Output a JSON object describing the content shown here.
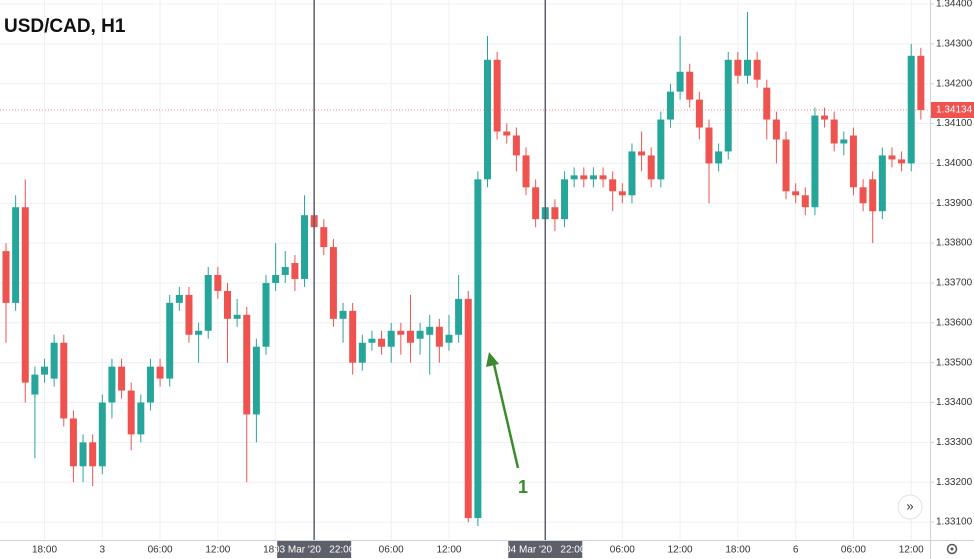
{
  "chart_data": {
    "type": "candlestick",
    "title": "USD/CAD, H1",
    "annotation": "1",
    "categories": [
      null,
      null,
      null,
      null,
      "18:00",
      null,
      null,
      null,
      null,
      null,
      "3",
      null,
      null,
      null,
      null,
      null,
      "06:00",
      null,
      null,
      null,
      null,
      null,
      "12:00",
      null,
      null,
      null,
      null,
      null,
      "18:00",
      null,
      null,
      null,
      "03 Mar '20   22:00",
      null,
      null,
      null,
      null,
      null,
      null,
      null,
      "06:00",
      null,
      null,
      null,
      null,
      null,
      "12:00",
      null,
      null,
      null,
      null,
      null,
      null,
      null,
      null,
      null,
      "04 Mar '20   22:00",
      null,
      null,
      null,
      null,
      null,
      null,
      null,
      "06:00",
      null,
      null,
      null,
      null,
      null,
      "12:00",
      null,
      null,
      null,
      null,
      null,
      "18:00",
      null,
      null,
      null,
      null,
      null,
      "6",
      null,
      null,
      null,
      null,
      null,
      "06:00",
      null,
      null,
      null,
      null,
      null,
      "12:00",
      null
    ],
    "highlighted_categories": [
      "03 Mar '20   22:00",
      "04 Mar '20   22:00"
    ],
    "open": [
      1.3378,
      1.3365,
      1.3389,
      1.3342,
      1.3347,
      1.3346,
      1.3355,
      1.3336,
      1.3324,
      1.333,
      1.3324,
      1.334,
      1.3349,
      1.3343,
      1.3332,
      1.334,
      1.3349,
      1.3346,
      1.3365,
      1.3367,
      1.3357,
      1.3358,
      1.3372,
      1.3368,
      1.3361,
      1.3362,
      1.3337,
      1.3354,
      1.337,
      1.3372,
      1.3375,
      1.3371,
      1.3387,
      1.3384,
      1.3379,
      1.3361,
      1.3363,
      1.335,
      1.3355,
      1.3356,
      1.3354,
      1.3358,
      1.3358,
      1.3356,
      1.3357,
      1.3359,
      1.3355,
      1.3357,
      1.3366,
      1.3311,
      1.3396,
      1.3426,
      1.3408,
      1.3407,
      1.3402,
      1.3394,
      1.3386,
      1.3389,
      1.3386,
      1.3396,
      1.3397,
      1.3396,
      1.3397,
      1.3396,
      1.3393,
      1.3392,
      1.3403,
      1.3402,
      1.3396,
      1.3411,
      1.3418,
      1.3423,
      1.3416,
      1.3409,
      1.34,
      1.3403,
      1.3426,
      1.3422,
      1.3426,
      1.3419,
      1.3411,
      1.3406,
      1.3393,
      1.3392,
      1.3389,
      1.3412,
      1.3411,
      1.3405,
      1.3407,
      1.3394,
      1.3396,
      1.3388,
      1.3402,
      1.3401,
      1.34,
      1.3427
    ],
    "high": [
      1.338,
      1.3392,
      1.3396,
      1.3349,
      1.3351,
      1.3357,
      1.3357,
      1.3338,
      1.3332,
      1.3332,
      1.3342,
      1.3351,
      1.3351,
      1.3345,
      1.3342,
      1.3351,
      1.3351,
      1.3367,
      1.3369,
      1.3369,
      1.336,
      1.3374,
      1.3374,
      1.337,
      1.3366,
      1.3364,
      1.3356,
      1.3372,
      1.338,
      1.3378,
      1.3377,
      1.3392,
      1.3389,
      1.3386,
      1.3381,
      1.3365,
      1.3365,
      1.3357,
      1.3358,
      1.3358,
      1.336,
      1.336,
      1.3367,
      1.336,
      1.3362,
      1.3361,
      1.3362,
      1.3372,
      1.3368,
      1.3398,
      1.3432,
      1.3428,
      1.341,
      1.3409,
      1.3404,
      1.3396,
      1.3391,
      1.3391,
      1.3398,
      1.3399,
      1.3399,
      1.3399,
      1.3399,
      1.3398,
      1.3395,
      1.3405,
      1.3408,
      1.3404,
      1.3413,
      1.342,
      1.3432,
      1.3425,
      1.3418,
      1.3411,
      1.3405,
      1.3428,
      1.3428,
      1.3438,
      1.3428,
      1.3421,
      1.3413,
      1.3408,
      1.3395,
      1.3394,
      1.3414,
      1.3414,
      1.3413,
      1.3408,
      1.3409,
      1.3396,
      1.3398,
      1.3404,
      1.3404,
      1.3403,
      1.343,
      1.3429
    ],
    "low": [
      1.3355,
      1.3363,
      1.334,
      1.3326,
      1.3345,
      1.3344,
      1.3334,
      1.332,
      1.332,
      1.3319,
      1.3322,
      1.3336,
      1.3341,
      1.3328,
      1.333,
      1.3338,
      1.3344,
      1.3344,
      1.3363,
      1.3355,
      1.335,
      1.3356,
      1.3366,
      1.335,
      1.3359,
      1.332,
      1.333,
      1.3352,
      1.3368,
      1.337,
      1.3368,
      1.3369,
      1.3382,
      1.3377,
      1.3359,
      1.3355,
      1.3347,
      1.3348,
      1.3353,
      1.3352,
      1.335,
      1.3352,
      1.335,
      1.3352,
      1.3347,
      1.335,
      1.3353,
      1.3355,
      1.331,
      1.3309,
      1.3394,
      1.3406,
      1.3405,
      1.3398,
      1.3392,
      1.3384,
      1.3384,
      1.3383,
      1.3384,
      1.3394,
      1.3394,
      1.3394,
      1.3394,
      1.3388,
      1.339,
      1.339,
      1.3398,
      1.3394,
      1.3394,
      1.3409,
      1.3416,
      1.3414,
      1.3406,
      1.339,
      1.3398,
      1.3401,
      1.342,
      1.342,
      1.3419,
      1.3406,
      1.34,
      1.3391,
      1.339,
      1.3387,
      1.3387,
      1.3409,
      1.3403,
      1.3402,
      1.3392,
      1.3388,
      1.338,
      1.3386,
      1.3399,
      1.3398,
      1.3398,
      1.3411
    ],
    "close": [
      1.3365,
      1.3389,
      1.3345,
      1.3347,
      1.3349,
      1.3355,
      1.3336,
      1.3324,
      1.333,
      1.3324,
      1.334,
      1.3349,
      1.3343,
      1.3332,
      1.334,
      1.3349,
      1.3346,
      1.3365,
      1.3367,
      1.3357,
      1.3358,
      1.3372,
      1.3368,
      1.3361,
      1.3362,
      1.3337,
      1.3354,
      1.337,
      1.3372,
      1.3374,
      1.3371,
      1.3387,
      1.3384,
      1.3379,
      1.3361,
      1.3363,
      1.335,
      1.3355,
      1.3356,
      1.3354,
      1.3358,
      1.3357,
      1.3355,
      1.3358,
      1.3359,
      1.3354,
      1.3357,
      1.3366,
      1.3311,
      1.3396,
      1.3426,
      1.3408,
      1.3407,
      1.3402,
      1.3394,
      1.3386,
      1.3389,
      1.3386,
      1.3396,
      1.3397,
      1.3396,
      1.3397,
      1.3396,
      1.3393,
      1.3392,
      1.3403,
      1.3402,
      1.3396,
      1.3411,
      1.3418,
      1.3423,
      1.3416,
      1.3409,
      1.34,
      1.3403,
      1.3426,
      1.3422,
      1.3426,
      1.3421,
      1.3411,
      1.3406,
      1.3393,
      1.3392,
      1.3389,
      1.3412,
      1.3411,
      1.3405,
      1.3406,
      1.3394,
      1.339,
      1.3388,
      1.3402,
      1.3401,
      1.34,
      1.3427,
      1.34134
    ],
    "up_color": "#26a69a",
    "down_color": "#ef5350",
    "last_price": 1.34134,
    "ylim": [
      1.33055,
      1.3441
    ],
    "yticks": [
      {
        "value": 1.331,
        "label": "1.33100"
      },
      {
        "value": 1.332,
        "label": "1.33200"
      },
      {
        "value": 1.333,
        "label": "1.33300"
      },
      {
        "value": 1.334,
        "label": "1.33400"
      },
      {
        "value": 1.335,
        "label": "1.33500"
      },
      {
        "value": 1.336,
        "label": "1.33600"
      },
      {
        "value": 1.337,
        "label": "1.33700"
      },
      {
        "value": 1.338,
        "label": "1.33800"
      },
      {
        "value": 1.339,
        "label": "1.33900"
      },
      {
        "value": 1.34,
        "label": "1.34000"
      },
      {
        "value": 1.341,
        "label": "1.34100"
      },
      {
        "value": 1.342,
        "label": "1.34200"
      },
      {
        "value": 1.343,
        "label": "1.34300"
      },
      {
        "value": 1.344,
        "label": "1.34400"
      }
    ],
    "grid": true
  }
}
